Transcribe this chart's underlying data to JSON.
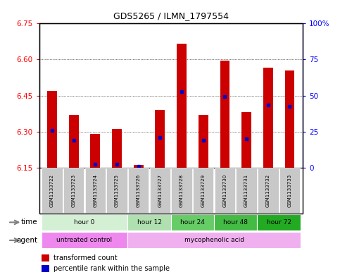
{
  "title": "GDS5265 / ILMN_1797554",
  "samples": [
    "GSM1133722",
    "GSM1133723",
    "GSM1133724",
    "GSM1133725",
    "GSM1133726",
    "GSM1133727",
    "GSM1133728",
    "GSM1133729",
    "GSM1133730",
    "GSM1133731",
    "GSM1133732",
    "GSM1133733"
  ],
  "bar_tops": [
    6.47,
    6.37,
    6.29,
    6.31,
    6.16,
    6.39,
    6.665,
    6.37,
    6.595,
    6.38,
    6.565,
    6.555
  ],
  "bar_base": 6.15,
  "blue_dot_y": [
    6.305,
    6.265,
    6.165,
    6.165,
    6.155,
    6.275,
    6.465,
    6.265,
    6.445,
    6.27,
    6.41,
    6.405
  ],
  "ylim_left": [
    6.15,
    6.75
  ],
  "ylim_right": [
    0,
    100
  ],
  "yticks_left": [
    6.15,
    6.3,
    6.45,
    6.6,
    6.75
  ],
  "yticks_right": [
    0,
    25,
    50,
    75,
    100
  ],
  "time_groups": [
    {
      "label": "hour 0",
      "indices": [
        0,
        1,
        2,
        3
      ],
      "color": "#d4f0d4"
    },
    {
      "label": "hour 12",
      "indices": [
        4,
        5
      ],
      "color": "#b0e0b0"
    },
    {
      "label": "hour 24",
      "indices": [
        6,
        7
      ],
      "color": "#66cc66"
    },
    {
      "label": "hour 48",
      "indices": [
        8,
        9
      ],
      "color": "#44bb44"
    },
    {
      "label": "hour 72",
      "indices": [
        10,
        11
      ],
      "color": "#22aa22"
    }
  ],
  "bar_color": "#cc0000",
  "dot_color": "#0000cc",
  "sample_bg_color": "#c8c8c8",
  "untreated_color": "#ee88ee",
  "myco_color": "#f0b0f0",
  "border_color": "#000000"
}
